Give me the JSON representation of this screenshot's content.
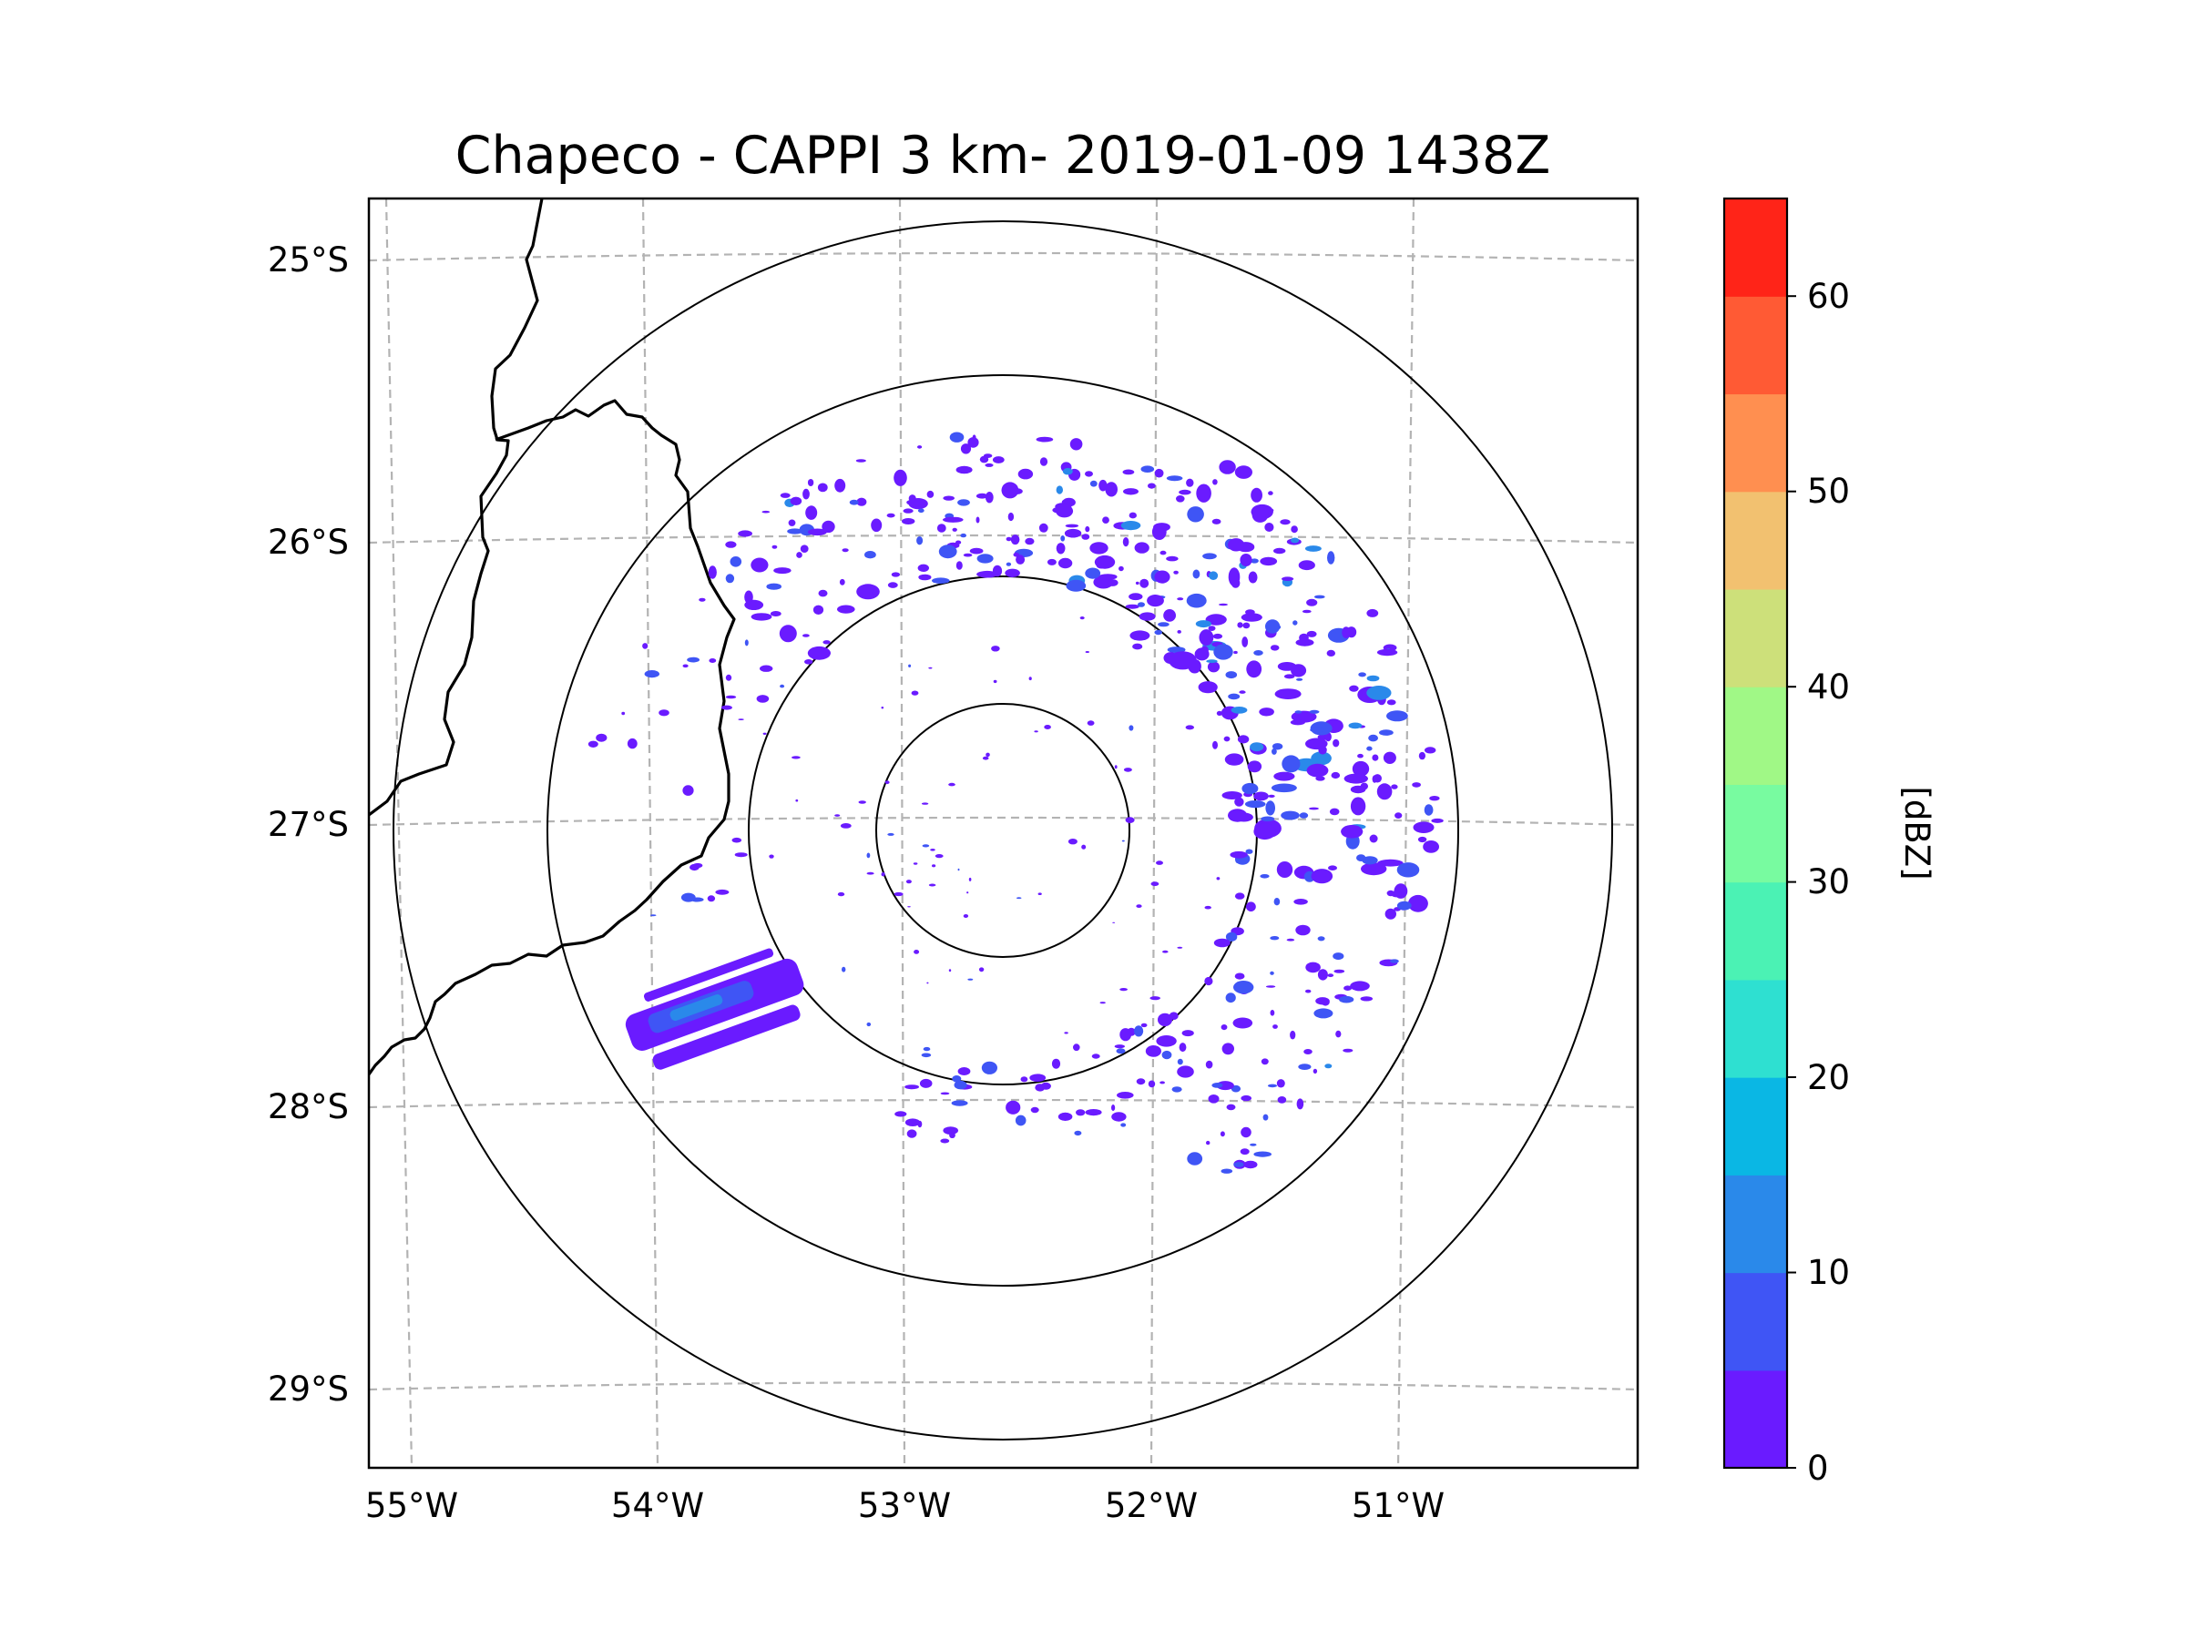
{
  "title": "Chapeco - CAPPI 3 km- 2019-01-09 1438Z",
  "lat_labels": [
    "25°S",
    "26°S",
    "27°S",
    "28°S",
    "29°S"
  ],
  "lon_labels": [
    "55°W",
    "54°W",
    "53°W",
    "52°W",
    "51°W"
  ],
  "colorbar": {
    "label": "[dBZ]",
    "ticks": [
      "0",
      "10",
      "20",
      "30",
      "40",
      "50",
      "60"
    ],
    "colors": [
      "#6a1bff",
      "#3f55f5",
      "#2a89ea",
      "#0ab7e4",
      "#2ee0d1",
      "#4bf2b4",
      "#78fba0",
      "#a0f886",
      "#cde07a",
      "#f2c170",
      "#ff8f50",
      "#ff5a34",
      "#ff2418"
    ]
  },
  "echo_colors": {
    "weak": "#6a1bff",
    "moderate": "#3f55f5",
    "strong": "#2a89ea"
  }
}
